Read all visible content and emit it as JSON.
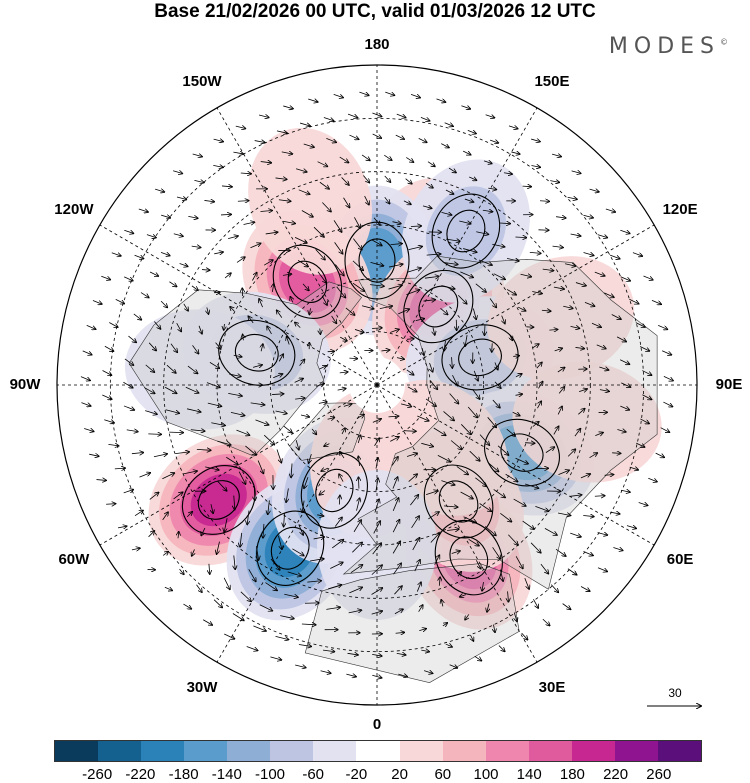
{
  "title": "Base 21/02/2026 00 UTC, valid 01/03/2026 12 UTC",
  "brand": "MODES",
  "brand_mark": "©",
  "longitude_labels": [
    "180",
    "150E",
    "120E",
    "90E",
    "60E",
    "30E",
    "0",
    "30W",
    "60W",
    "90W",
    "120W",
    "150W"
  ],
  "vector_reference": {
    "label": "30",
    "magnitude": 30
  },
  "colorbar": {
    "ticks": [
      "-260",
      "-220",
      "-180",
      "-140",
      "-100",
      "-60",
      "-20",
      "20",
      "60",
      "100",
      "140",
      "180",
      "220",
      "260"
    ],
    "colors": [
      "#0b3b5c",
      "#14608f",
      "#2b82b8",
      "#5a9ccc",
      "#8eaed6",
      "#bdc5e3",
      "#e2e2f1",
      "#ffffff",
      "#f8d8d8",
      "#f5b5bd",
      "#ef86ad",
      "#e05a9e",
      "#c62790",
      "#8f1490",
      "#5a0f7a"
    ]
  },
  "anomaly_centers": [
    {
      "lon": 160,
      "lat": 50,
      "value": 40
    },
    {
      "lon": 180,
      "lat": 55,
      "value": -150
    },
    {
      "lon": -146,
      "lat": 55,
      "value": 150
    },
    {
      "lon": 142,
      "lat": 62,
      "value": 160
    },
    {
      "lon": 150,
      "lat": 40,
      "value": -70
    },
    {
      "lon": -105,
      "lat": 55,
      "value": -90
    },
    {
      "lon": -95,
      "lat": 40,
      "value": -50
    },
    {
      "lon": 105,
      "lat": 60,
      "value": -90
    },
    {
      "lon": 65,
      "lat": 45,
      "value": -140
    },
    {
      "lon": 80,
      "lat": 30,
      "value": 40
    },
    {
      "lon": -54,
      "lat": 35,
      "value": 180
    },
    {
      "lon": -28,
      "lat": 38,
      "value": -200
    },
    {
      "lon": -22,
      "lat": 58,
      "value": -140
    },
    {
      "lon": 28,
      "lat": 35,
      "value": 150
    },
    {
      "lon": 35,
      "lat": 50,
      "value": 60
    },
    {
      "lon": 45,
      "lat": 65,
      "value": 50
    },
    {
      "lon": -5,
      "lat": 68,
      "value": 40
    },
    {
      "lon": 0,
      "lat": 45,
      "value": -20
    },
    {
      "lon": -160,
      "lat": 35,
      "value": 30
    },
    {
      "lon": 110,
      "lat": 35,
      "value": 30
    }
  ]
}
